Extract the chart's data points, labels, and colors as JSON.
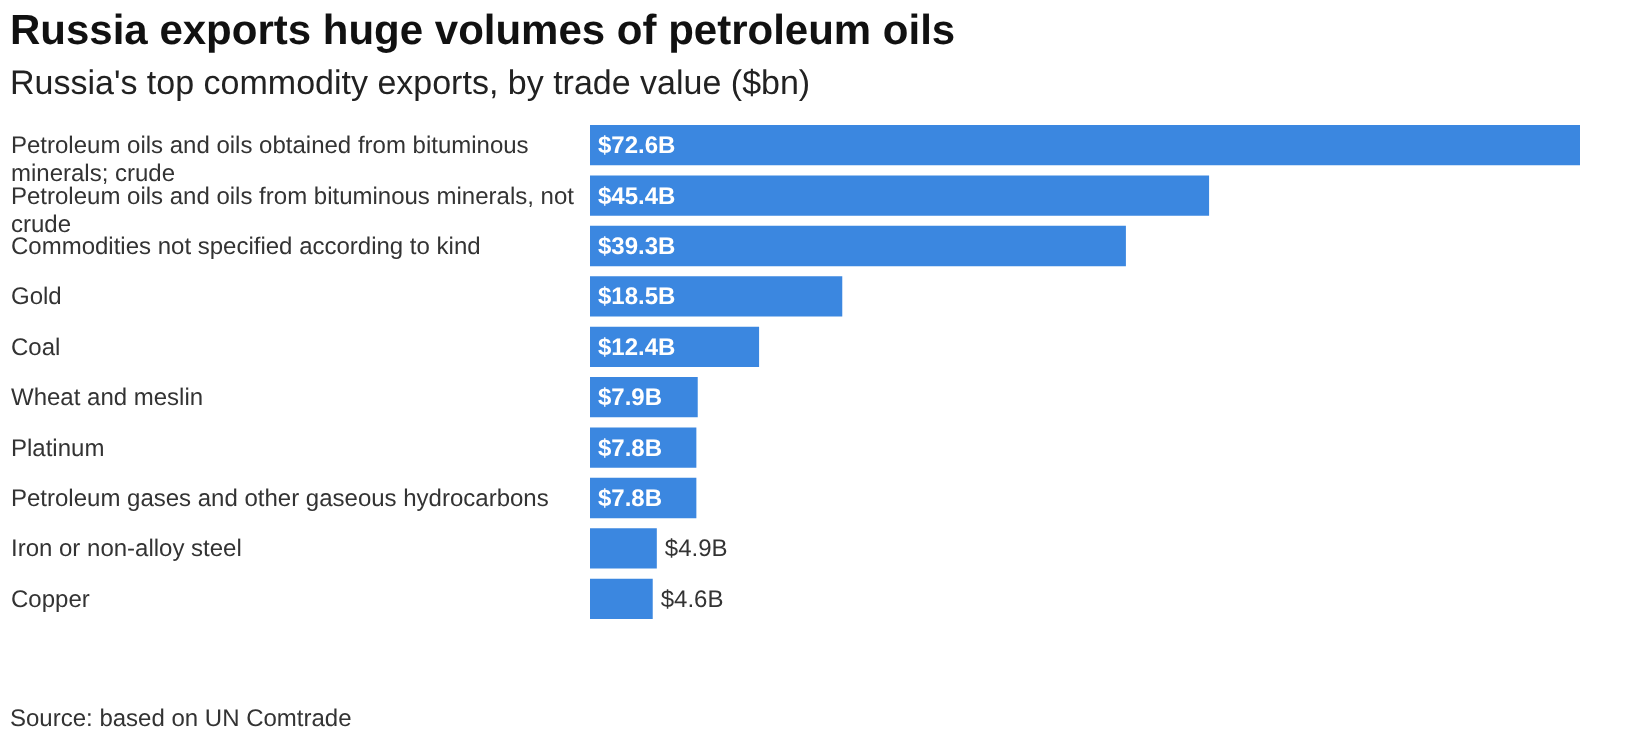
{
  "chart_data": {
    "type": "bar",
    "orientation": "horizontal",
    "title": "Russia exports huge volumes of petroleum oils",
    "subtitle": "Russia's top commodity exports, by trade value ($bn)",
    "categories": [
      "Petroleum oils and oils obtained from bituminous minerals; crude",
      "Petroleum oils and oils from bituminous minerals, not crude",
      "Commodities not specified according to kind",
      "Gold",
      "Coal",
      "Wheat and meslin",
      "Platinum",
      "Petroleum gases and other gaseous hydrocarbons",
      "Iron or non-alloy steel",
      "Copper"
    ],
    "values": [
      72.6,
      45.4,
      39.3,
      18.5,
      12.4,
      7.9,
      7.8,
      7.8,
      4.9,
      4.6
    ],
    "value_labels": [
      "$72.6B",
      "$45.4B",
      "$39.3B",
      "$18.5B",
      "$12.4B",
      "$7.9B",
      "$7.8B",
      "$7.8B",
      "$4.9B",
      "$4.6B"
    ],
    "color": "#3b87e0",
    "annotations": [
      "Source: based on UN Comtrade"
    ]
  }
}
